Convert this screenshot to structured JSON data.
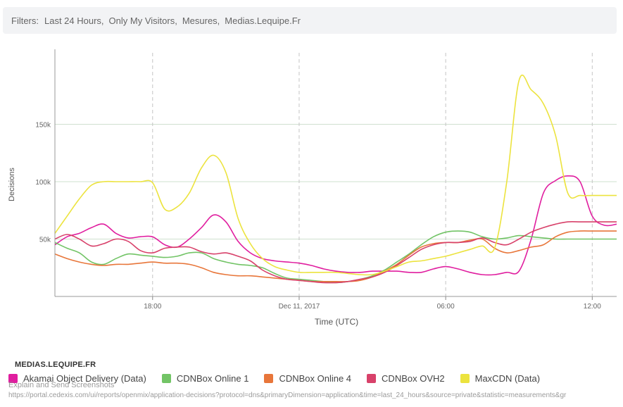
{
  "filters": {
    "label": "Filters:",
    "values": [
      "Last 24 Hours,",
      "Only My Visitors,",
      "Mesures,",
      "Medias.Lequipe.Fr"
    ]
  },
  "legend": {
    "title": "MEDIAS.LEQUIPE.FR"
  },
  "overlay": {
    "explain": "Explain and Send Screenshots",
    "url": "https://portal.cedexis.com/ui/reports/openmix/application-decisions?protocol=dns&primaryDimension=application&time=last_24_hours&source=private&statistic=measurements&gr"
  },
  "chart_data": {
    "type": "line",
    "xlabel": "Time (UTC)",
    "ylabel": "Decisions",
    "x_ticks": [
      "18:00",
      "Dec 11, 2017",
      "06:00",
      "12:00"
    ],
    "x_tick_hours": [
      3,
      9,
      15,
      21
    ],
    "y_ticks": [
      "50k",
      "100k",
      "150k"
    ],
    "y_tick_values": [
      50000,
      100000,
      150000
    ],
    "x_range_hours": [
      -1,
      22
    ],
    "y_range": [
      0,
      200000
    ],
    "grid": {
      "horizontal": true,
      "vertical_dashed": true
    },
    "legend_position": "bottom",
    "x": [
      -1,
      -0.5,
      0,
      0.5,
      1,
      1.5,
      2,
      2.5,
      3,
      3.5,
      4,
      4.5,
      5,
      5.5,
      6,
      6.5,
      7,
      7.5,
      8,
      8.5,
      9,
      9.5,
      10,
      10.5,
      11,
      11.5,
      12,
      12.5,
      13,
      13.5,
      14,
      14.5,
      15,
      15.5,
      16,
      16.5,
      17,
      17.5,
      18,
      18.5,
      19,
      19.5,
      20,
      20.5,
      21,
      21.5,
      22
    ],
    "series": [
      {
        "name": "Akamai Object Delivery (Data)",
        "color": "#e01e9f",
        "values": [
          45000,
          52000,
          55000,
          60000,
          63000,
          55000,
          51000,
          52000,
          52000,
          45000,
          43000,
          50000,
          60000,
          71000,
          65000,
          48000,
          38000,
          33000,
          31000,
          30000,
          29000,
          27000,
          24000,
          22000,
          21000,
          21000,
          22000,
          22000,
          22000,
          21000,
          21000,
          24000,
          26000,
          24000,
          21000,
          19000,
          19000,
          21000,
          22000,
          50000,
          90000,
          101000,
          105000,
          100000,
          70000,
          62000,
          63000
        ]
      },
      {
        "name": "CDNBox Online 1",
        "color": "#72c466",
        "values": [
          47000,
          42000,
          38000,
          30000,
          28000,
          33000,
          37000,
          36000,
          35000,
          34000,
          35000,
          38000,
          38000,
          33000,
          30000,
          28000,
          27000,
          25000,
          20000,
          16000,
          15000,
          14000,
          13000,
          12000,
          13000,
          15000,
          18000,
          23000,
          30000,
          37000,
          45000,
          52000,
          56000,
          57000,
          56000,
          52000,
          50000,
          51000,
          53000,
          52000,
          51000,
          50000,
          50000,
          50000,
          50000,
          50000,
          50000
        ]
      },
      {
        "name": "CDNBox Online 4",
        "color": "#e8763a",
        "values": [
          37000,
          33000,
          30000,
          28000,
          27000,
          28000,
          28000,
          29000,
          30000,
          29000,
          29000,
          28000,
          25000,
          21000,
          19000,
          18000,
          18000,
          17000,
          16000,
          15000,
          14000,
          13000,
          13000,
          13000,
          13000,
          14000,
          17000,
          22000,
          28000,
          36000,
          43000,
          46000,
          47000,
          47000,
          49000,
          50000,
          42000,
          38000,
          40000,
          43000,
          45000,
          52000,
          56000,
          57000,
          57000,
          57000,
          57000
        ]
      },
      {
        "name": "CDNBox OVH2",
        "color": "#d8416a",
        "values": [
          50000,
          54000,
          50000,
          44000,
          46000,
          50000,
          48000,
          40000,
          38000,
          42000,
          43000,
          43000,
          39000,
          37000,
          38000,
          35000,
          31000,
          23000,
          18000,
          15000,
          14000,
          13000,
          12000,
          12000,
          13000,
          15000,
          17000,
          21000,
          27000,
          34000,
          41000,
          45000,
          47000,
          47000,
          48000,
          51000,
          47000,
          45000,
          50000,
          56000,
          60000,
          63000,
          65000,
          65000,
          65000,
          65000,
          65000
        ]
      },
      {
        "name": "MaxCDN (Data)",
        "color": "#ece33e",
        "values": [
          55000,
          70000,
          85000,
          97000,
          100000,
          100000,
          100000,
          100000,
          99000,
          76000,
          78000,
          90000,
          112000,
          123000,
          108000,
          68000,
          46000,
          33000,
          26000,
          23000,
          21000,
          21000,
          21000,
          21000,
          20000,
          19000,
          19000,
          22000,
          26000,
          30000,
          31000,
          33000,
          35000,
          38000,
          41000,
          44000,
          42000,
          100000,
          188000,
          180000,
          168000,
          140000,
          90000,
          88000,
          88000,
          88000,
          88000
        ]
      }
    ]
  }
}
